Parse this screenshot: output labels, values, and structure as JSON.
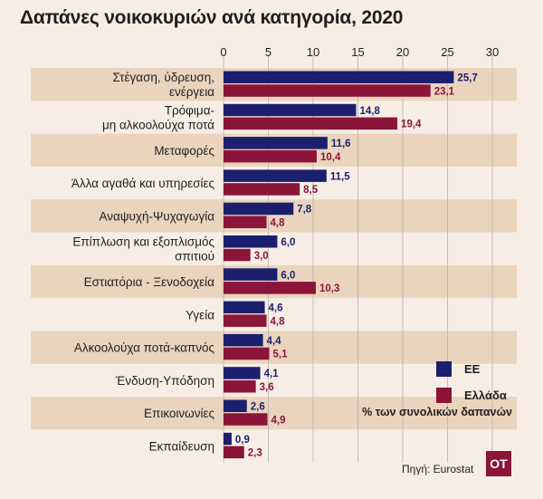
{
  "title": "Δαπάνες νοικοκυριών ανά κατηγορία, 2020",
  "source": "Πηγή: Eurostat",
  "logo_text": "OT",
  "colors": {
    "eu": "#1c1f6e",
    "greece": "#8a1538",
    "band": "#ead4be",
    "background": "#f6eee4"
  },
  "chart_data": {
    "type": "bar",
    "orientation": "horizontal",
    "xlim": [
      0,
      30
    ],
    "xticks": [
      "0",
      "5",
      "10",
      "15",
      "20",
      "25",
      "30"
    ],
    "grid": true,
    "legend_position": "bottom-right",
    "unit_label": "% των συνολικών δαπανών",
    "categories": [
      [
        "Στέγαση, ύδρευση,",
        "ενέργεια"
      ],
      [
        "Τρόφιμα-",
        "μη αλκοολούχα ποτά"
      ],
      [
        "Μεταφορές"
      ],
      [
        "Άλλα αγαθά και υπηρεσίες"
      ],
      [
        "Αναψυχή-Ψυχαγωγία"
      ],
      [
        "Επίπλωση και εξοπλισμός",
        "σπιτιού"
      ],
      [
        "Εστιατόρια - Ξενοδοχεία"
      ],
      [
        "Υγεία"
      ],
      [
        "Αλκοολούχα ποτά-καπνός"
      ],
      [
        "Ένδυση-Υπόδηση"
      ],
      [
        "Επικοινωνίες"
      ],
      [
        "Εκπαίδευση"
      ]
    ],
    "series": [
      {
        "name": "ΕΕ",
        "values": [
          25.7,
          14.8,
          11.6,
          11.5,
          7.8,
          6.0,
          6.0,
          4.6,
          4.4,
          4.1,
          2.6,
          0.9
        ],
        "labels": [
          "25,7",
          "14,8",
          "11,6",
          "11,5",
          "7,8",
          "6,0",
          "6,0",
          "4,6",
          "4,4",
          "4,1",
          "2,6",
          "0,9"
        ]
      },
      {
        "name": "Ελλάδα",
        "values": [
          23.1,
          19.4,
          10.4,
          8.5,
          4.8,
          3.0,
          10.3,
          4.8,
          5.1,
          3.6,
          4.9,
          2.3
        ],
        "labels": [
          "23,1",
          "19,4",
          "10,4",
          "8,5",
          "4,8",
          "3,0",
          "10,3",
          "4,8",
          "5,1",
          "3,6",
          "4,9",
          "2,3"
        ]
      }
    ]
  }
}
